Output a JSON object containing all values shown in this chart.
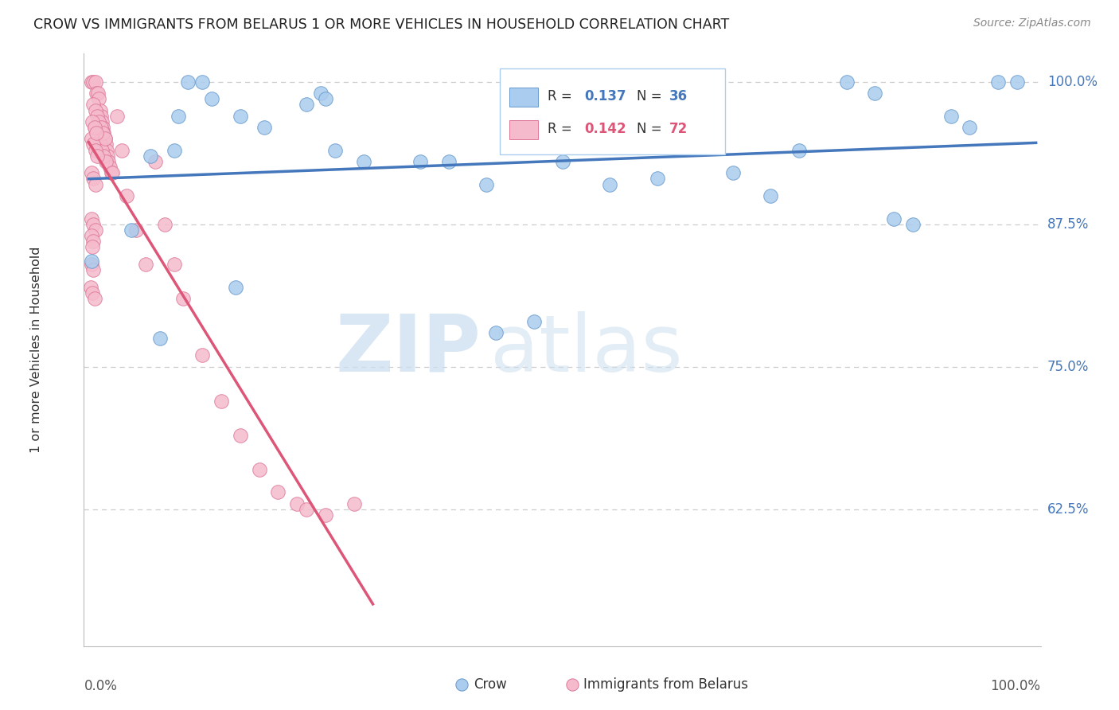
{
  "title": "CROW VS IMMIGRANTS FROM BELARUS 1 OR MORE VEHICLES IN HOUSEHOLD CORRELATION CHART",
  "source": "Source: ZipAtlas.com",
  "ylabel": "1 or more Vehicles in Household",
  "ylim": [
    0.505,
    1.025
  ],
  "xlim": [
    -0.005,
    1.005
  ],
  "yticks": [
    0.625,
    0.75,
    0.875,
    1.0
  ],
  "ytick_labels": [
    "62.5%",
    "75.0%",
    "87.5%",
    "100.0%"
  ],
  "crow_R": 0.137,
  "crow_N": 36,
  "belarus_R": 0.142,
  "belarus_N": 72,
  "crow_color": "#AACCEE",
  "crow_edge_color": "#6699CC",
  "crow_line_color": "#4477BB",
  "belarus_color": "#F5BBCC",
  "belarus_edge_color": "#DD7799",
  "belarus_line_color": "#DD5577",
  "crow_x": [
    0.003,
    0.045,
    0.065,
    0.075,
    0.09,
    0.095,
    0.105,
    0.12,
    0.13,
    0.155,
    0.16,
    0.185,
    0.23,
    0.245,
    0.25,
    0.26,
    0.29,
    0.35,
    0.38,
    0.42,
    0.43,
    0.47,
    0.5,
    0.55,
    0.6,
    0.68,
    0.72,
    0.75,
    0.8,
    0.83,
    0.85,
    0.87,
    0.91,
    0.93,
    0.96,
    0.98
  ],
  "crow_y": [
    0.843,
    0.87,
    0.935,
    0.775,
    0.94,
    0.97,
    1.0,
    1.0,
    0.985,
    0.82,
    0.97,
    0.96,
    0.98,
    0.99,
    0.985,
    0.94,
    0.93,
    0.93,
    0.93,
    0.91,
    0.78,
    0.79,
    0.93,
    0.91,
    0.915,
    0.92,
    0.9,
    0.94,
    1.0,
    0.99,
    0.88,
    0.875,
    0.97,
    0.96,
    1.0,
    1.0
  ],
  "belarus_x": [
    0.003,
    0.005,
    0.007,
    0.008,
    0.01,
    0.011,
    0.012,
    0.013,
    0.014,
    0.015,
    0.016,
    0.017,
    0.018,
    0.019,
    0.02,
    0.021,
    0.022,
    0.024,
    0.006,
    0.008,
    0.01,
    0.012,
    0.014,
    0.016,
    0.018,
    0.005,
    0.007,
    0.009,
    0.011,
    0.013,
    0.015,
    0.017,
    0.003,
    0.005,
    0.007,
    0.009,
    0.004,
    0.006,
    0.008,
    0.003,
    0.005,
    0.007,
    0.025,
    0.03,
    0.035,
    0.04,
    0.05,
    0.06,
    0.07,
    0.08,
    0.09,
    0.1,
    0.12,
    0.14,
    0.16,
    0.18,
    0.2,
    0.22,
    0.25,
    0.28,
    0.003,
    0.005,
    0.007,
    0.003,
    0.005,
    0.004,
    0.003,
    0.005,
    0.002,
    0.004,
    0.006,
    0.23
  ],
  "belarus_y": [
    1.0,
    1.0,
    1.0,
    0.99,
    0.99,
    0.985,
    0.975,
    0.97,
    0.965,
    0.96,
    0.955,
    0.95,
    0.945,
    0.94,
    0.935,
    0.93,
    0.925,
    0.92,
    0.96,
    0.955,
    0.95,
    0.945,
    0.94,
    0.935,
    0.93,
    0.98,
    0.975,
    0.97,
    0.965,
    0.96,
    0.955,
    0.95,
    0.95,
    0.945,
    0.94,
    0.935,
    0.965,
    0.96,
    0.955,
    0.92,
    0.915,
    0.91,
    0.92,
    0.97,
    0.94,
    0.9,
    0.87,
    0.84,
    0.93,
    0.875,
    0.84,
    0.81,
    0.76,
    0.72,
    0.69,
    0.66,
    0.64,
    0.63,
    0.62,
    0.63,
    0.88,
    0.875,
    0.87,
    0.865,
    0.86,
    0.855,
    0.84,
    0.835,
    0.82,
    0.815,
    0.81,
    0.625
  ],
  "background_color": "#FFFFFF",
  "grid_color": "#CCCCCC"
}
